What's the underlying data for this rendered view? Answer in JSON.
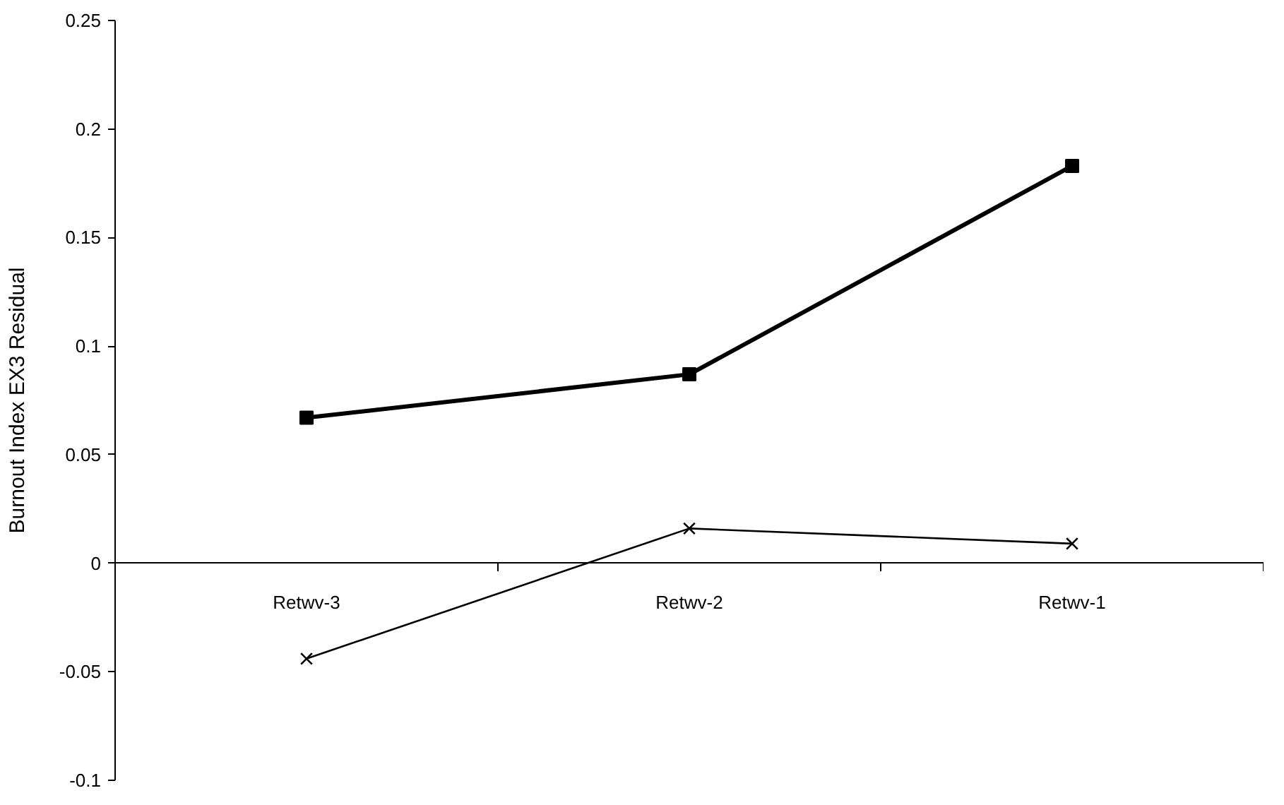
{
  "chart_data": {
    "type": "line",
    "ylabel": "Burnout Index EX3 Residual",
    "categories": [
      "Retwv-3",
      "Retwv-2",
      "Retwv-1"
    ],
    "series": [
      {
        "color": "#000000",
        "values": [
          0.067,
          0.087,
          0.183
        ],
        "marker": "square"
      },
      {
        "color": "#000000",
        "values": [
          -0.044,
          0.016,
          0.009
        ],
        "marker": "cross"
      }
    ],
    "ylim": [
      -0.1,
      0.25
    ],
    "yticks": [
      -0.1,
      -0.05,
      0,
      0.05,
      0.1,
      0.15,
      0.2,
      0.25
    ],
    "grid": false,
    "line_style": "solid"
  }
}
